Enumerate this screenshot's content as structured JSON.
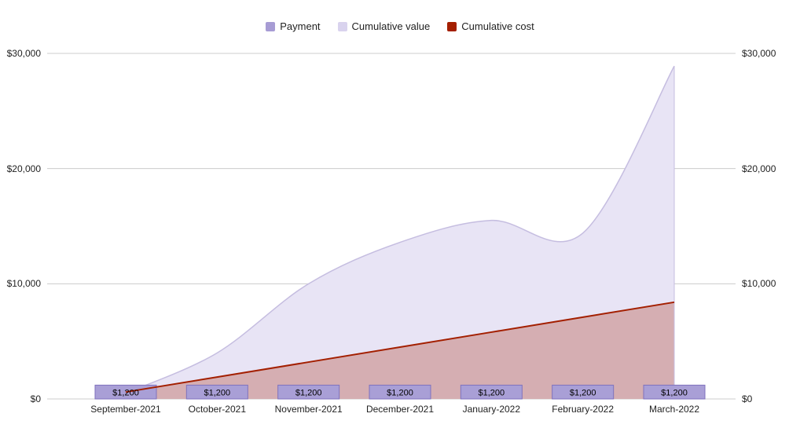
{
  "legend": {
    "items": [
      {
        "label": "Payment",
        "color": "#a79cd4"
      },
      {
        "label": "Cumulative value",
        "color": "#d9d3ee"
      },
      {
        "label": "Cumulative cost",
        "color": "#a41f00"
      }
    ]
  },
  "chart_data": {
    "type": "combo",
    "title": "",
    "categories": [
      "September-2021",
      "October-2021",
      "November-2021",
      "December-2021",
      "January-2022",
      "February-2022",
      "March-2022"
    ],
    "series": [
      {
        "name": "Payment",
        "type": "bar",
        "values": [
          1200,
          1200,
          1200,
          1200,
          1200,
          1200,
          1200
        ],
        "data_labels": [
          "$1,200",
          "$1,200",
          "$1,200",
          "$1,200",
          "$1,200",
          "$1,200",
          "$1,200"
        ],
        "fill": "#a99fd6",
        "stroke": "#7f72bd"
      },
      {
        "name": "Cumulative value",
        "type": "area",
        "smooth": true,
        "values": [
          500,
          4000,
          10000,
          13600,
          15500,
          14400,
          28900
        ],
        "fill": "#e8e4f5",
        "stroke": "#c5bde0"
      },
      {
        "name": "Cumulative cost",
        "type": "line-area",
        "smooth": false,
        "values": [
          600,
          1900,
          3200,
          4500,
          5800,
          7100,
          8400
        ],
        "fill": "rgba(164,31,0,0.27)",
        "stroke": "#a31f00"
      }
    ],
    "y_axis": {
      "min": 0,
      "max": 30000,
      "tick_values": [
        0,
        10000,
        20000,
        30000
      ],
      "ticks": [
        "$0",
        "$10,000",
        "$20,000",
        "$30,000"
      ]
    },
    "y_axis_right": {
      "ticks": [
        "$0",
        "$10,000",
        "$20,000",
        "$30,000"
      ]
    },
    "grid": true,
    "gridline_color": "#cccccc",
    "legend_position": "top"
  }
}
